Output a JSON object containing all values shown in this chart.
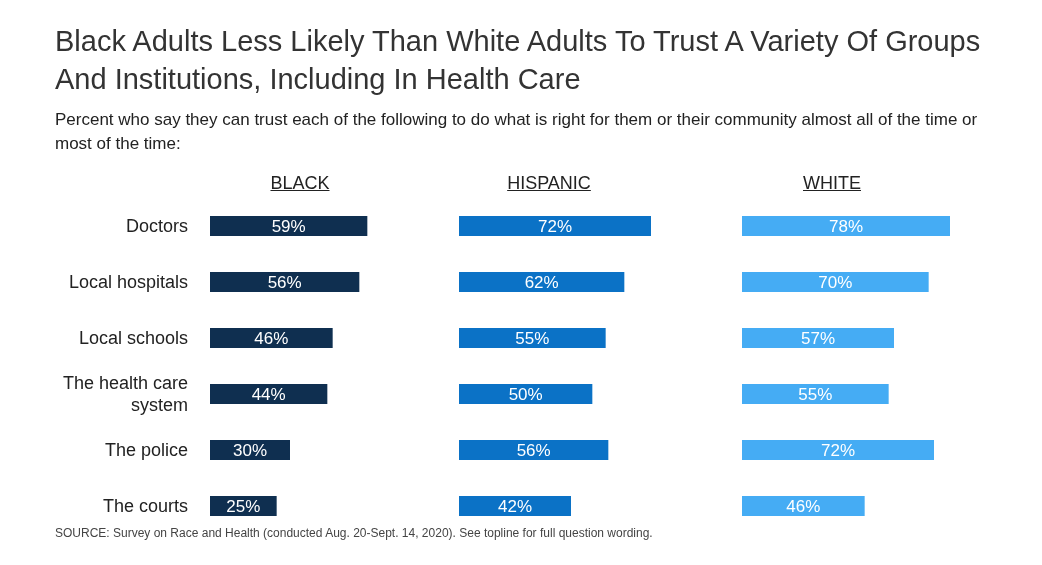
{
  "chart_data": [
    {
      "type": "bar",
      "orientation": "horizontal",
      "title": "Black Adults Less Likely Than White Adults To Trust A Variety Of Groups And Institutions, Including In Health Care",
      "subtitle": "Percent who say they can trust each of the following to do what is right for them or their community almost all of the time or most of the time:",
      "tick_labels": "y",
      "categories": [
        "Doctors",
        "Local hospitals",
        "Local schools",
        "The health care system",
        "The police",
        "The courts"
      ],
      "series": [
        {
          "name": "BLACK",
          "color": "#0f2f50",
          "values": [
            59,
            56,
            46,
            44,
            30,
            25
          ],
          "value_labels": [
            "59%",
            "56%",
            "46%",
            "44%",
            "30%",
            "25%"
          ]
        }
      ],
      "annotations": [
        "SOURCE: Survey on Race and Health (conducted Aug. 20-Sept. 14, 2020). See topline for full question wording."
      ]
    },
    {
      "type": "bar",
      "orientation": "horizontal",
      "tick_labels": false,
      "categories": [
        null,
        null,
        null,
        null,
        null,
        null
      ],
      "series": [
        {
          "name": "HISPANIC",
          "color": "#0b72c6",
          "values": [
            72,
            62,
            55,
            50,
            56,
            42
          ],
          "value_labels": [
            "72%",
            "62%",
            "55%",
            "50%",
            "56%",
            "42%"
          ]
        }
      ]
    },
    {
      "type": "bar",
      "orientation": "horizontal",
      "tick_labels": false,
      "categories": [
        null,
        null,
        null,
        null,
        null,
        null
      ],
      "series": [
        {
          "name": "WHITE",
          "color": "#45acf4",
          "values": [
            78,
            70,
            57,
            55,
            72,
            46
          ],
          "value_labels": [
            "78%",
            "70%",
            "57%",
            "55%",
            "72%",
            "46%"
          ]
        }
      ]
    }
  ]
}
